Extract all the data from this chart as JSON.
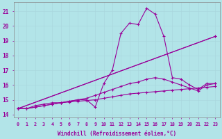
{
  "xlabel": "Windchill (Refroidissement éolien,°C)",
  "background_color": "#b2e4e8",
  "grid_color": "#c8e8ec",
  "line_color": "#990099",
  "xlim": [
    -0.5,
    23.5
  ],
  "ylim": [
    13.8,
    21.6
  ],
  "yticks": [
    14,
    15,
    16,
    17,
    18,
    19,
    20,
    21
  ],
  "xticks": [
    0,
    1,
    2,
    3,
    4,
    5,
    6,
    7,
    8,
    9,
    10,
    11,
    12,
    13,
    14,
    15,
    16,
    17,
    18,
    19,
    20,
    21,
    22,
    23
  ],
  "lines": [
    {
      "x": [
        0,
        1,
        2,
        3,
        4,
        5,
        6,
        7,
        8,
        9,
        10,
        11,
        12,
        13,
        14,
        15,
        16,
        17,
        18,
        19,
        20,
        21,
        22,
        23
      ],
      "y": [
        14.4,
        14.4,
        14.6,
        14.7,
        14.8,
        14.8,
        14.9,
        15.0,
        15.0,
        14.5,
        16.1,
        17.0,
        19.5,
        20.2,
        20.1,
        21.2,
        20.8,
        19.3,
        16.5,
        16.4,
        16.0,
        15.7,
        16.1,
        16.1
      ]
    },
    {
      "x": [
        0,
        23
      ],
      "y": [
        14.4,
        19.3
      ]
    },
    {
      "x": [
        0,
        1,
        2,
        3,
        4,
        5,
        6,
        7,
        8,
        9,
        10,
        11,
        12,
        13,
        14,
        15,
        16,
        17,
        18,
        19,
        20,
        21,
        22,
        23
      ],
      "y": [
        14.4,
        14.4,
        14.5,
        14.6,
        14.7,
        14.8,
        14.9,
        15.0,
        15.1,
        15.3,
        15.5,
        15.7,
        15.9,
        16.1,
        16.2,
        16.4,
        16.5,
        16.4,
        16.2,
        16.0,
        15.8,
        15.6,
        16.0,
        16.1
      ]
    },
    {
      "x": [
        0,
        1,
        2,
        3,
        4,
        5,
        6,
        7,
        8,
        9,
        10,
        11,
        12,
        13,
        14,
        15,
        16,
        17,
        18,
        19,
        20,
        21,
        22,
        23
      ],
      "y": [
        14.4,
        14.4,
        14.5,
        14.6,
        14.7,
        14.8,
        14.85,
        14.9,
        14.95,
        15.0,
        15.1,
        15.2,
        15.3,
        15.4,
        15.45,
        15.5,
        15.55,
        15.6,
        15.65,
        15.7,
        15.75,
        15.8,
        15.85,
        15.9
      ]
    }
  ],
  "straight_line": {
    "x": [
      0,
      23
    ],
    "y": [
      14.4,
      19.3
    ]
  }
}
